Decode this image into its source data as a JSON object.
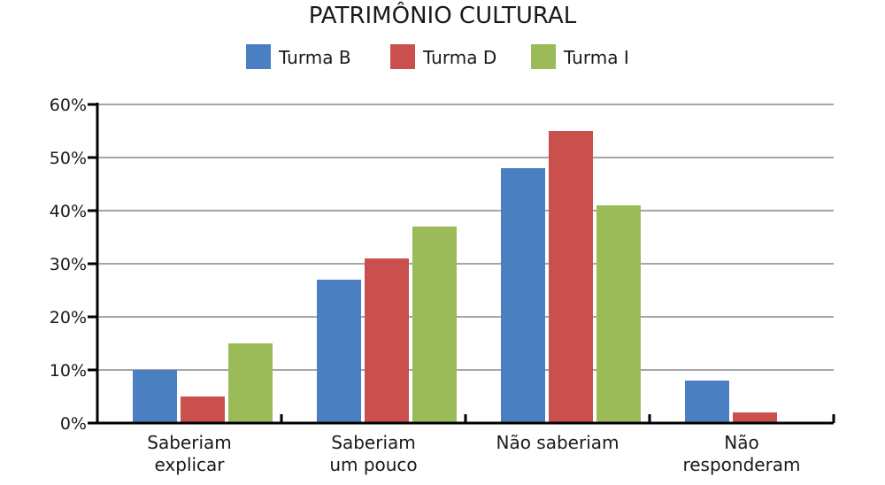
{
  "chart_data": {
    "type": "bar",
    "title": "PATRIMÔNIO CULTURAL",
    "xlabel": "",
    "ylabel": "",
    "categories": [
      [
        "Saberiam",
        "explicar"
      ],
      [
        "Saberiam",
        "um pouco"
      ],
      [
        "Não saberiam"
      ],
      [
        "Não",
        "responderam"
      ]
    ],
    "series": [
      {
        "name": "Turma B",
        "color": "#4a7fc1",
        "values": [
          10,
          27,
          48,
          8
        ]
      },
      {
        "name": "Turma D",
        "color": "#c9504c",
        "values": [
          5,
          31,
          55,
          2
        ]
      },
      {
        "name": "Turma I",
        "color": "#9bbb59",
        "values": [
          15,
          37,
          41,
          0
        ]
      }
    ],
    "ylim": [
      0,
      60
    ],
    "yticks": [
      0,
      10,
      20,
      30,
      40,
      50,
      60
    ],
    "ytick_labels": [
      "0%",
      "10%",
      "20%",
      "30%",
      "40%",
      "50%",
      "60%"
    ],
    "grid": true,
    "grid_color": "#a6a6a6",
    "legend_position": "top-center"
  }
}
